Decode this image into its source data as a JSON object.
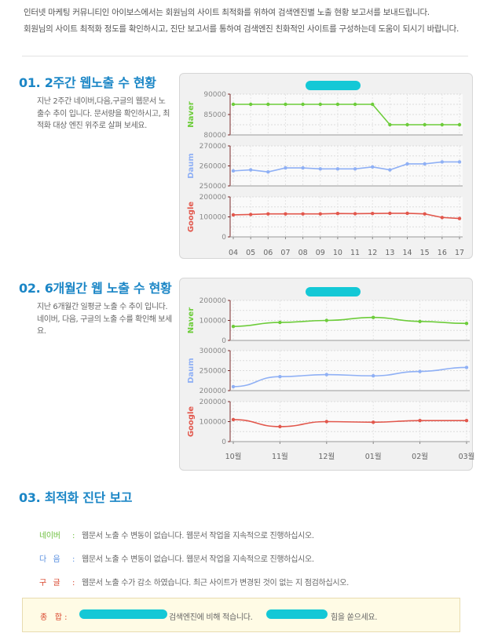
{
  "intro": {
    "line1": "인터넷 마케팅 커뮤니티인 아이보스에서는 회원님의 사이트 최적화를 위하여 검색엔진별 노출 현황 보고서를 보내드립니다.",
    "line2": "회원님의 사이트 최적화 정도를 확인하시고, 진단 보고서를 통하여 검색엔진 친화적인 사이트를 구성하는데 도움이 되시기 바랍니다."
  },
  "section1": {
    "title": "01. 2주간 웹노출 수 현황",
    "desc": "지난 2주간 네이버,다음,구글의 웹문서 노출수 추이 입니다. 문서량을 확인하시고, 최적화 대상 엔진 위주로 살펴 보세요."
  },
  "section2": {
    "title": "02. 6개월간 웹 노출 수 현황",
    "desc": "지난 6개월간 일평균 노출 수 추이 입니다. 네이버, 다음, 구글의 노출 수를 확인해 보세요."
  },
  "section3": {
    "title": "03. 최적화 진단 보고",
    "items": [
      {
        "engine": "네이버",
        "colon": ":",
        "text": "웹문서 노출 수 변동이 없습니다. 웹문서 작업을 지속적으로 진행하십시오.",
        "color": "#6dbf3d"
      },
      {
        "engine": "다   음",
        "colon": ":",
        "text": "웹문서 노출 수 변동이 없습니다. 웹문서 작업을 지속적으로 진행하십시오.",
        "color": "#5a90e0"
      },
      {
        "engine": "구   글",
        "colon": ":",
        "text": "웹문서 노출 수가 감소 하였습니다. 최근 사이트가 변경된 것이 없는 지 점검하십시오.",
        "color": "#d9452c"
      }
    ],
    "summary": {
      "label": "종   합 :",
      "text1": "검색엔진에 비해 적습니다.",
      "text2": "힘을 쏟으세요."
    }
  },
  "colors": {
    "naver": "#6dcc3a",
    "daum": "#8fb0f5",
    "google": "#e2574c",
    "title": "#1b86c6"
  },
  "chart_data": [
    {
      "type": "line",
      "x": [
        "04",
        "05",
        "06",
        "07",
        "08",
        "09",
        "10",
        "11",
        "12",
        "13",
        "14",
        "15",
        "16",
        "17"
      ],
      "series": [
        {
          "name": "Naver",
          "values": [
            87500,
            87500,
            87500,
            87500,
            87500,
            87500,
            87500,
            87500,
            87500,
            82500,
            82500,
            82500,
            82500,
            82500
          ],
          "ylim": [
            80000,
            90000
          ],
          "ticks": [
            "90000",
            "85000",
            "80000"
          ]
        },
        {
          "name": "Daum",
          "values": [
            257500,
            258000,
            257000,
            259000,
            259000,
            258500,
            258500,
            258500,
            259500,
            258000,
            261000,
            261000,
            262000,
            262000
          ],
          "ylim": [
            250000,
            270000
          ],
          "ticks": [
            "270000",
            "260000",
            "250000"
          ]
        },
        {
          "name": "Google",
          "values": [
            110000,
            112000,
            115000,
            115000,
            115000,
            115000,
            117000,
            116000,
            117000,
            118000,
            118000,
            115000,
            97000,
            92000
          ],
          "ylim": [
            0,
            200000
          ],
          "ticks": [
            "200000",
            "100000",
            "0"
          ]
        }
      ]
    },
    {
      "type": "line",
      "x": [
        "10월",
        "11월",
        "12월",
        "01월",
        "02월",
        "03월"
      ],
      "series": [
        {
          "name": "Naver",
          "values": [
            70000,
            90000,
            100000,
            115000,
            95000,
            85000
          ],
          "ylim": [
            0,
            200000
          ],
          "ticks": [
            "200000",
            "100000",
            "0"
          ]
        },
        {
          "name": "Daum",
          "values": [
            210000,
            235000,
            240000,
            237000,
            248000,
            258000
          ],
          "ylim": [
            200000,
            300000
          ],
          "ticks": [
            "300000",
            "250000",
            "200000"
          ]
        },
        {
          "name": "Google",
          "values": [
            110000,
            75000,
            100000,
            97000,
            105000,
            105000
          ],
          "ylim": [
            0,
            200000
          ],
          "ticks": [
            "200000",
            "100000",
            "0"
          ]
        }
      ]
    }
  ]
}
